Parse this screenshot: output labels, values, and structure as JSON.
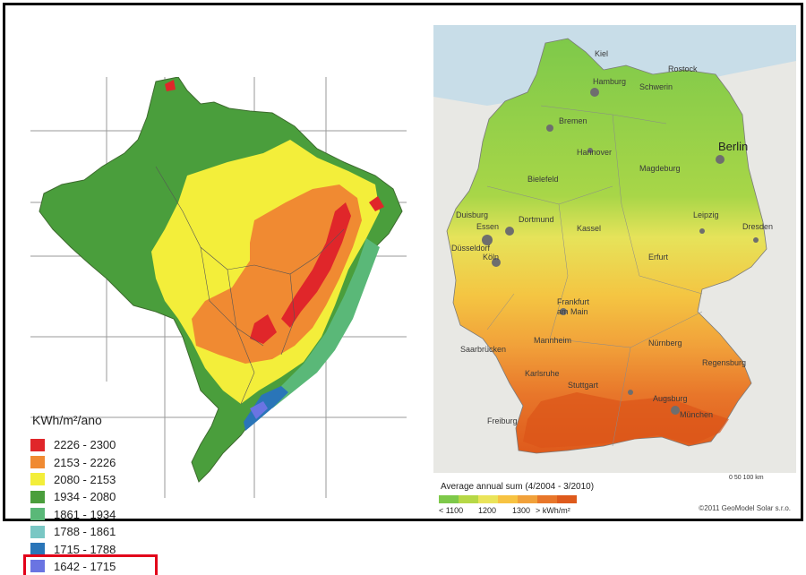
{
  "brazil": {
    "legend_title": "KWh/m²/ano",
    "legend": [
      {
        "label": "2226 - 2300",
        "color": "#e0262a"
      },
      {
        "label": "2153 - 2226",
        "color": "#f08a32"
      },
      {
        "label": "2080 - 2153",
        "color": "#f3ee3a"
      },
      {
        "label": "1934 - 2080",
        "color": "#4a9e3c"
      },
      {
        "label": "1861 - 1934",
        "color": "#5ab878"
      },
      {
        "label": "1788 - 1861",
        "color": "#79c7c4"
      },
      {
        "label": "1715 - 1788",
        "color": "#2a75b8"
      },
      {
        "label": "1642 - 1715",
        "color": "#6a74e2"
      }
    ],
    "highlighted_range": "1642 - 1715",
    "highlight_color": "#e2001a"
  },
  "germany": {
    "caption": "Average annual sum (4/2004 - 3/2010)",
    "scale_labels": {
      "low": "< 1100",
      "mid1": "1200",
      "mid2": "1300",
      "high": "> kWh/m²"
    },
    "scale_colors": [
      "#7ec94a",
      "#b6d846",
      "#eae45a",
      "#f7c342",
      "#f1a13a",
      "#e8762a",
      "#de5a1c"
    ],
    "km_scale": "0      50      100 km",
    "copyright": "©2011 GeoModel Solar s.r.o.",
    "cities": {
      "kiel": "Kiel",
      "rostock": "Rostock",
      "hamburg": "Hamburg",
      "schwerin": "Schwerin",
      "bremen": "Bremen",
      "berlin": "Berlin",
      "hannover": "Hannover",
      "magdeburg": "Magdeburg",
      "bielefeld": "Bielefeld",
      "dortmund": "Dortmund",
      "duisburg": "Duisburg",
      "essen": "Essen",
      "kassel": "Kassel",
      "leipzig": "Leipzig",
      "dresden": "Dresden",
      "duesseldorf": "Düsseldorf",
      "koeln": "Köln",
      "erfurt": "Erfurt",
      "frankfurt": "Frankfurt",
      "am_main": "am Main",
      "nuernberg": "Nürnberg",
      "saarbruecken": "Saarbrücken",
      "mannheim": "Mannheim",
      "karlsruhe": "Karlsruhe",
      "stuttgart": "Stuttgart",
      "augsburg": "Augsburg",
      "muenchen": "München",
      "freiburg": "Freiburg",
      "regensburg": "Regensburg"
    }
  }
}
